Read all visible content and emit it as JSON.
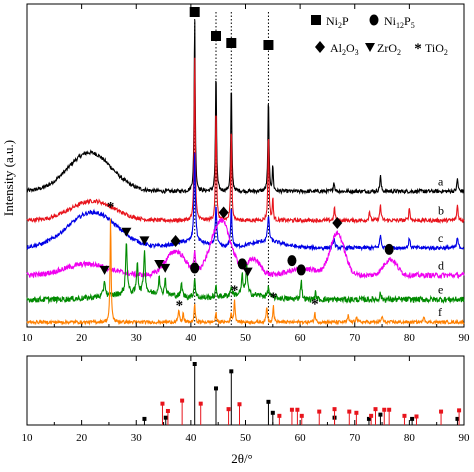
{
  "chart_data": {
    "type": "line",
    "xlabel": "2θ/°",
    "ylabel": "Intensity (a.u.)",
    "xlim": [
      10,
      90
    ],
    "x_ticks": [
      "10",
      "20",
      "30",
      "40",
      "50",
      "60",
      "70",
      "80",
      "90"
    ],
    "legend": [
      {
        "symbol": "square",
        "label": "Ni2P",
        "base": "Ni",
        "sub": "2",
        "tail": "P"
      },
      {
        "symbol": "circle",
        "label": "Ni12P5",
        "base": "Ni",
        "sub": "12",
        "tail": "P",
        "sub2": "5"
      },
      {
        "symbol": "diamond",
        "label": "Al2O3",
        "base": "Al",
        "sub": "2",
        "tail": "O",
        "sub2": "3"
      },
      {
        "symbol": "triangle-down",
        "label": "ZrO2",
        "base": "ZrO",
        "sub": "2"
      },
      {
        "symbol": "asterisk",
        "label": "TiO2",
        "base": "TiO",
        "sub": "2"
      }
    ],
    "reference_lines_2theta": [
      40.7,
      44.6,
      47.4,
      54.2
    ],
    "series": [
      {
        "name": "a",
        "color": "#000000",
        "offset": 0.42,
        "noise": 0.012,
        "humps": [
          [
            21.5,
            4,
            0.12
          ]
        ],
        "peaks": [
          [
            40.7,
            0.55,
            0.22
          ],
          [
            44.6,
            0.38,
            0.22
          ],
          [
            47.4,
            0.34,
            0.22
          ],
          [
            54.2,
            0.3,
            0.22
          ],
          [
            55.0,
            0.08,
            0.2
          ],
          [
            66.2,
            0.03,
            0.25
          ],
          [
            74.7,
            0.05,
            0.25
          ],
          [
            88.8,
            0.04,
            0.25
          ]
        ],
        "markers": [
          {
            "symbol": "square",
            "x": 40.7
          },
          {
            "symbol": "square",
            "x": 44.6
          },
          {
            "symbol": "square",
            "x": 47.4
          },
          {
            "symbol": "square",
            "x": 54.2
          }
        ]
      },
      {
        "name": "b",
        "color": "#e8141c",
        "offset": 0.33,
        "noise": 0.012,
        "humps": [
          [
            22,
            4,
            0.06
          ]
        ],
        "peaks": [
          [
            40.7,
            0.52,
            0.22
          ],
          [
            44.6,
            0.36,
            0.22
          ],
          [
            47.4,
            0.3,
            0.22
          ],
          [
            54.2,
            0.28,
            0.22
          ],
          [
            55.0,
            0.07,
            0.2
          ],
          [
            66.3,
            0.04,
            0.25
          ],
          [
            72.7,
            0.03,
            0.25
          ],
          [
            74.7,
            0.05,
            0.25
          ],
          [
            80.0,
            0.04,
            0.25
          ],
          [
            88.8,
            0.05,
            0.25
          ]
        ],
        "markers": []
      },
      {
        "name": "c",
        "color": "#0000e6",
        "offset": 0.245,
        "noise": 0.012,
        "humps": [
          [
            22,
            4.5,
            0.11
          ],
          [
            40,
            3,
            0.02
          ],
          [
            54,
            3,
            0.02
          ]
        ],
        "peaks": [
          [
            40.7,
            0.28,
            0.3
          ],
          [
            44.6,
            0.13,
            0.3
          ],
          [
            47.4,
            0.12,
            0.3
          ],
          [
            54.2,
            0.08,
            0.35
          ],
          [
            66.2,
            0.03,
            0.3
          ],
          [
            74.7,
            0.04,
            0.3
          ],
          [
            80.0,
            0.03,
            0.3
          ],
          [
            88.8,
            0.03,
            0.3
          ]
        ],
        "markers": []
      },
      {
        "name": "d",
        "color": "#f000f0",
        "offset": 0.16,
        "noise": 0.016,
        "humps": [
          [
            21,
            4,
            0.035
          ],
          [
            37.2,
            1.8,
            0.075
          ],
          [
            45.5,
            1.8,
            0.17
          ],
          [
            51.5,
            1.2,
            0.05
          ],
          [
            60.5,
            2.5,
            0.02
          ],
          [
            66.8,
            1.3,
            0.13
          ],
          [
            76.5,
            1.2,
            0.05
          ]
        ],
        "peaks": [
          [
            40.7,
            0.06,
            0.3
          ]
        ],
        "markers": [
          {
            "symbol": "diamond",
            "x": 37.2
          },
          {
            "symbol": "diamond",
            "x": 46.0
          },
          {
            "symbol": "circle",
            "x": 58.5
          },
          {
            "symbol": "diamond",
            "x": 66.8
          },
          {
            "symbol": "circle",
            "x": 76.3
          }
        ]
      },
      {
        "name": "e",
        "color": "#008a00",
        "offset": 0.085,
        "noise": 0.018,
        "humps": [
          [
            31,
            6,
            0.02
          ],
          [
            50,
            4,
            0.015
          ]
        ],
        "peaks": [
          [
            24.2,
            0.05,
            0.35
          ],
          [
            28.2,
            0.16,
            0.35
          ],
          [
            30.2,
            0.1,
            0.3
          ],
          [
            31.5,
            0.13,
            0.35
          ],
          [
            34.2,
            0.06,
            0.3
          ],
          [
            35.3,
            0.05,
            0.3
          ],
          [
            38.3,
            0.04,
            0.3
          ],
          [
            40.7,
            0.06,
            0.3
          ],
          [
            44.6,
            0.03,
            0.3
          ],
          [
            47.4,
            0.03,
            0.3
          ],
          [
            49.4,
            0.06,
            0.3
          ],
          [
            50.2,
            0.09,
            0.35
          ],
          [
            54.2,
            0.03,
            0.3
          ],
          [
            60.2,
            0.06,
            0.3
          ],
          [
            62.8,
            0.02,
            0.3
          ],
          [
            74.7,
            0.02,
            0.3
          ]
        ],
        "markers": [
          {
            "symbol": "triangle-down",
            "x": 24.2
          },
          {
            "symbol": "triangle-down",
            "x": 28.2
          },
          {
            "symbol": "triangle-down",
            "x": 31.5
          },
          {
            "symbol": "triangle-down",
            "x": 34.2
          },
          {
            "symbol": "triangle-down",
            "x": 35.3
          },
          {
            "symbol": "circle",
            "x": 40.7
          },
          {
            "symbol": "circle",
            "x": 49.4
          },
          {
            "symbol": "triangle-down",
            "x": 50.4
          },
          {
            "symbol": "circle",
            "x": 60.2
          }
        ]
      },
      {
        "name": "f",
        "color": "#ff8000",
        "offset": 0.015,
        "noise": 0.01,
        "humps": [],
        "peaks": [
          [
            25.3,
            0.33,
            0.22
          ],
          [
            37.8,
            0.04,
            0.25
          ],
          [
            38.6,
            0.03,
            0.2
          ],
          [
            40.7,
            0.06,
            0.22
          ],
          [
            44.6,
            0.03,
            0.22
          ],
          [
            47.4,
            0.03,
            0.22
          ],
          [
            48.0,
            0.07,
            0.25
          ],
          [
            53.9,
            0.05,
            0.25
          ],
          [
            55.1,
            0.05,
            0.25
          ],
          [
            62.7,
            0.03,
            0.25
          ],
          [
            68.8,
            0.02,
            0.25
          ],
          [
            70.3,
            0.02,
            0.25
          ],
          [
            75.0,
            0.02,
            0.25
          ],
          [
            82.7,
            0.02,
            0.25
          ]
        ],
        "markers": [
          {
            "symbol": "asterisk",
            "x": 25.3
          },
          {
            "symbol": "asterisk",
            "x": 37.9
          },
          {
            "symbol": "asterisk",
            "x": 48.0
          },
          {
            "symbol": "asterisk",
            "x": 55.1
          },
          {
            "symbol": "asterisk",
            "x": 62.7
          }
        ]
      }
    ],
    "reference_pattern": {
      "black": [
        [
          31.5,
          0.1
        ],
        [
          35.4,
          0.12
        ],
        [
          40.7,
          1.0
        ],
        [
          44.6,
          0.6
        ],
        [
          47.4,
          0.88
        ],
        [
          54.2,
          0.38
        ],
        [
          55.0,
          0.2
        ],
        [
          66.3,
          0.12
        ],
        [
          72.6,
          0.1
        ],
        [
          74.7,
          0.17
        ],
        [
          80.5,
          0.1
        ],
        [
          88.8,
          0.1
        ]
      ],
      "red": [
        [
          34.8,
          0.35
        ],
        [
          35.8,
          0.23
        ],
        [
          38.4,
          0.4
        ],
        [
          41.8,
          0.35
        ],
        [
          46.9,
          0.26
        ],
        [
          48.9,
          0.34
        ],
        [
          56.2,
          0.15
        ],
        [
          58.5,
          0.25
        ],
        [
          59.5,
          0.25
        ],
        [
          60.3,
          0.15
        ],
        [
          63.5,
          0.22
        ],
        [
          66.3,
          0.26
        ],
        [
          69.0,
          0.22
        ],
        [
          70.3,
          0.2
        ],
        [
          73.0,
          0.15
        ],
        [
          73.8,
          0.26
        ],
        [
          75.4,
          0.25
        ],
        [
          76.3,
          0.25
        ],
        [
          79.1,
          0.15
        ],
        [
          81.3,
          0.14
        ],
        [
          85.8,
          0.22
        ],
        [
          89.1,
          0.24
        ]
      ]
    }
  }
}
